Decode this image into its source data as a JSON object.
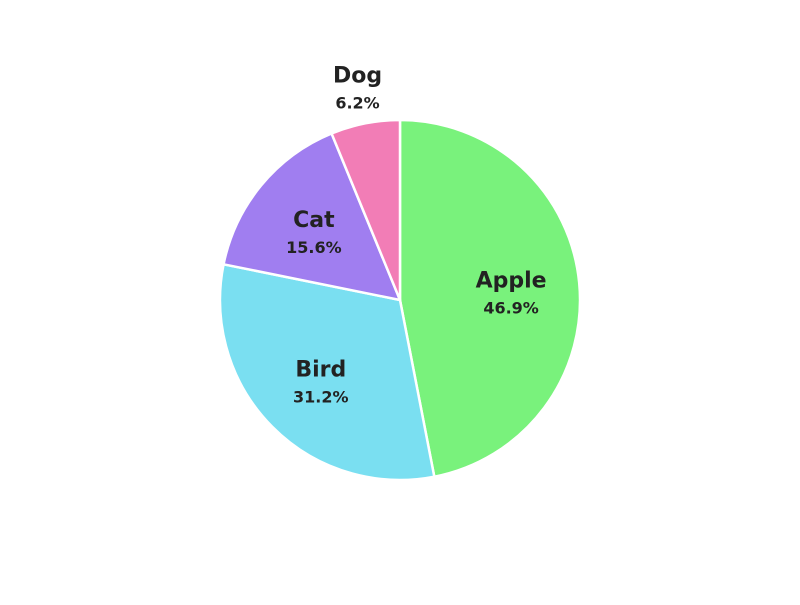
{
  "chart_data": {
    "type": "pie",
    "title": "",
    "start_angle_deg": 90,
    "direction": "clockwise",
    "legend": "none",
    "slices": [
      {
        "label": "Apple",
        "value": 46.9,
        "value_label": "46.9%",
        "color": "#79f27c"
      },
      {
        "label": "Bird",
        "value": 31.2,
        "value_label": "31.2%",
        "color": "#7adff1"
      },
      {
        "label": "Cat",
        "value": 15.6,
        "value_label": "15.6%",
        "color": "#a07ef0"
      },
      {
        "label": "Dog",
        "value": 6.2,
        "value_label": "6.2%",
        "color": "#f27db6"
      }
    ]
  }
}
